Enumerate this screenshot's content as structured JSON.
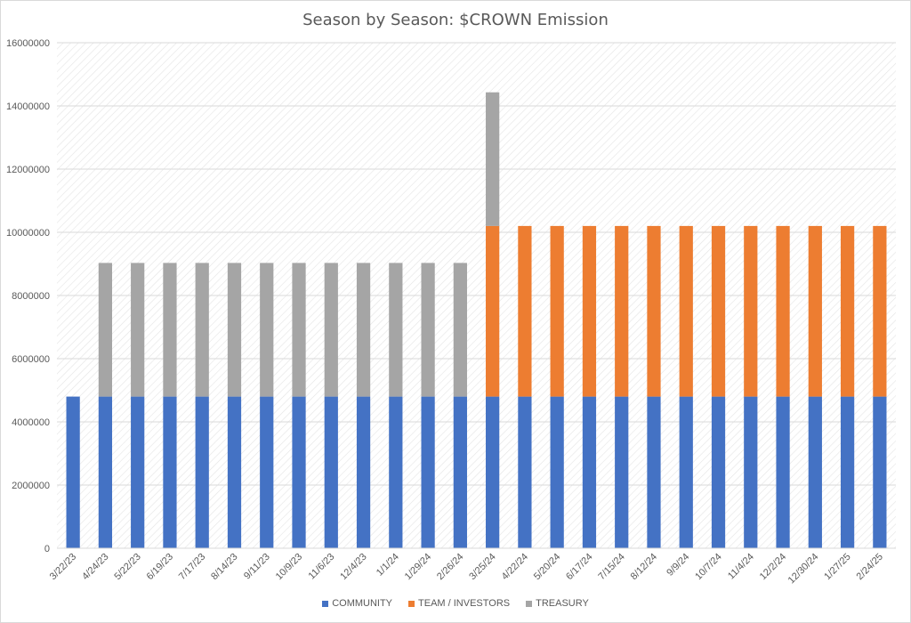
{
  "chart_data": {
    "type": "bar",
    "stacked": true,
    "title": "Season by Season: $CROWN Emission",
    "xlabel": "",
    "ylabel": "",
    "ylim": [
      0,
      16000000
    ],
    "yticks": [
      "0",
      "2000000",
      "4000000",
      "6000000",
      "8000000",
      "10000000",
      "12000000",
      "14000000",
      "16000000"
    ],
    "grid": true,
    "legend_position": "bottom",
    "categories": [
      "3/22/23",
      "4/24/23",
      "5/22/23",
      "6/19/23",
      "7/17/23",
      "8/14/23",
      "9/11/23",
      "10/9/23",
      "11/6/23",
      "12/4/23",
      "1/1/24",
      "1/29/24",
      "2/26/24",
      "3/25/24",
      "4/22/24",
      "5/20/24",
      "6/17/24",
      "7/15/24",
      "8/12/24",
      "9/9/24",
      "10/7/24",
      "11/4/24",
      "12/2/24",
      "12/30/24",
      "1/27/25",
      "2/24/25"
    ],
    "series": [
      {
        "name": "COMMUNITY",
        "color": "#4472c4",
        "values": [
          4800000,
          4800000,
          4800000,
          4800000,
          4800000,
          4800000,
          4800000,
          4800000,
          4800000,
          4800000,
          4800000,
          4800000,
          4800000,
          4800000,
          4800000,
          4800000,
          4800000,
          4800000,
          4800000,
          4800000,
          4800000,
          4800000,
          4800000,
          4800000,
          4800000,
          4800000
        ]
      },
      {
        "name": "TEAM / INVESTORS",
        "color": "#ed7d31",
        "values": [
          0,
          0,
          0,
          0,
          0,
          0,
          0,
          0,
          0,
          0,
          0,
          0,
          0,
          5400000,
          5400000,
          5400000,
          5400000,
          5400000,
          5400000,
          5400000,
          5400000,
          5400000,
          5400000,
          5400000,
          5400000,
          5400000
        ]
      },
      {
        "name": "TREASURY",
        "color": "#a5a5a5",
        "values": [
          0,
          4230000,
          4230000,
          4230000,
          4230000,
          4230000,
          4230000,
          4230000,
          4230000,
          4230000,
          4230000,
          4230000,
          4230000,
          4230000,
          0,
          0,
          0,
          0,
          0,
          0,
          0,
          0,
          0,
          0,
          0,
          0
        ]
      }
    ]
  }
}
